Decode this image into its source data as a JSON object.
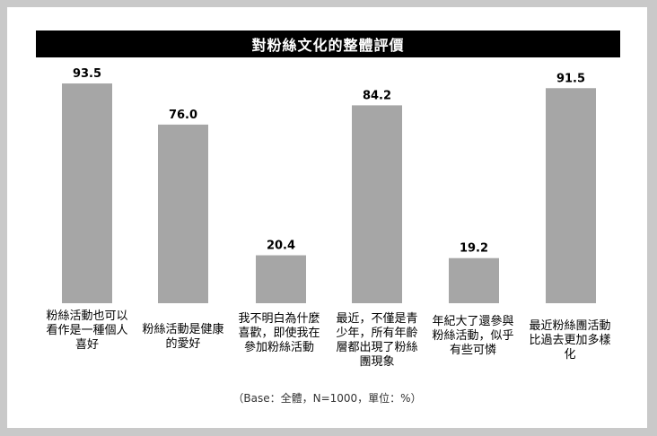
{
  "chart_data": {
    "type": "bar",
    "title": "對粉絲文化的整體評價",
    "categories": [
      "粉絲活動也可以看作是一種個人喜好",
      "粉絲活動是健康的愛好",
      "我不明白為什麼喜歡，即使我在參加粉絲活動",
      "最近，不僅是青少年，所有年齡層都出現了粉絲團現象",
      "年紀大了還參與粉絲活動，似乎有些可憐",
      "最近粉絲團活動比過去更加多樣化"
    ],
    "values": [
      93.5,
      76.0,
      20.4,
      84.2,
      19.2,
      91.5
    ],
    "value_labels": [
      "93.5",
      "76.0",
      "20.4",
      "84.2",
      "19.2",
      "91.5"
    ],
    "ylim": [
      0,
      100
    ],
    "grid": false,
    "legend": "none",
    "bar_color": "#a6a6a6",
    "note": "（Base：全體，N=1000，單位：%）"
  }
}
